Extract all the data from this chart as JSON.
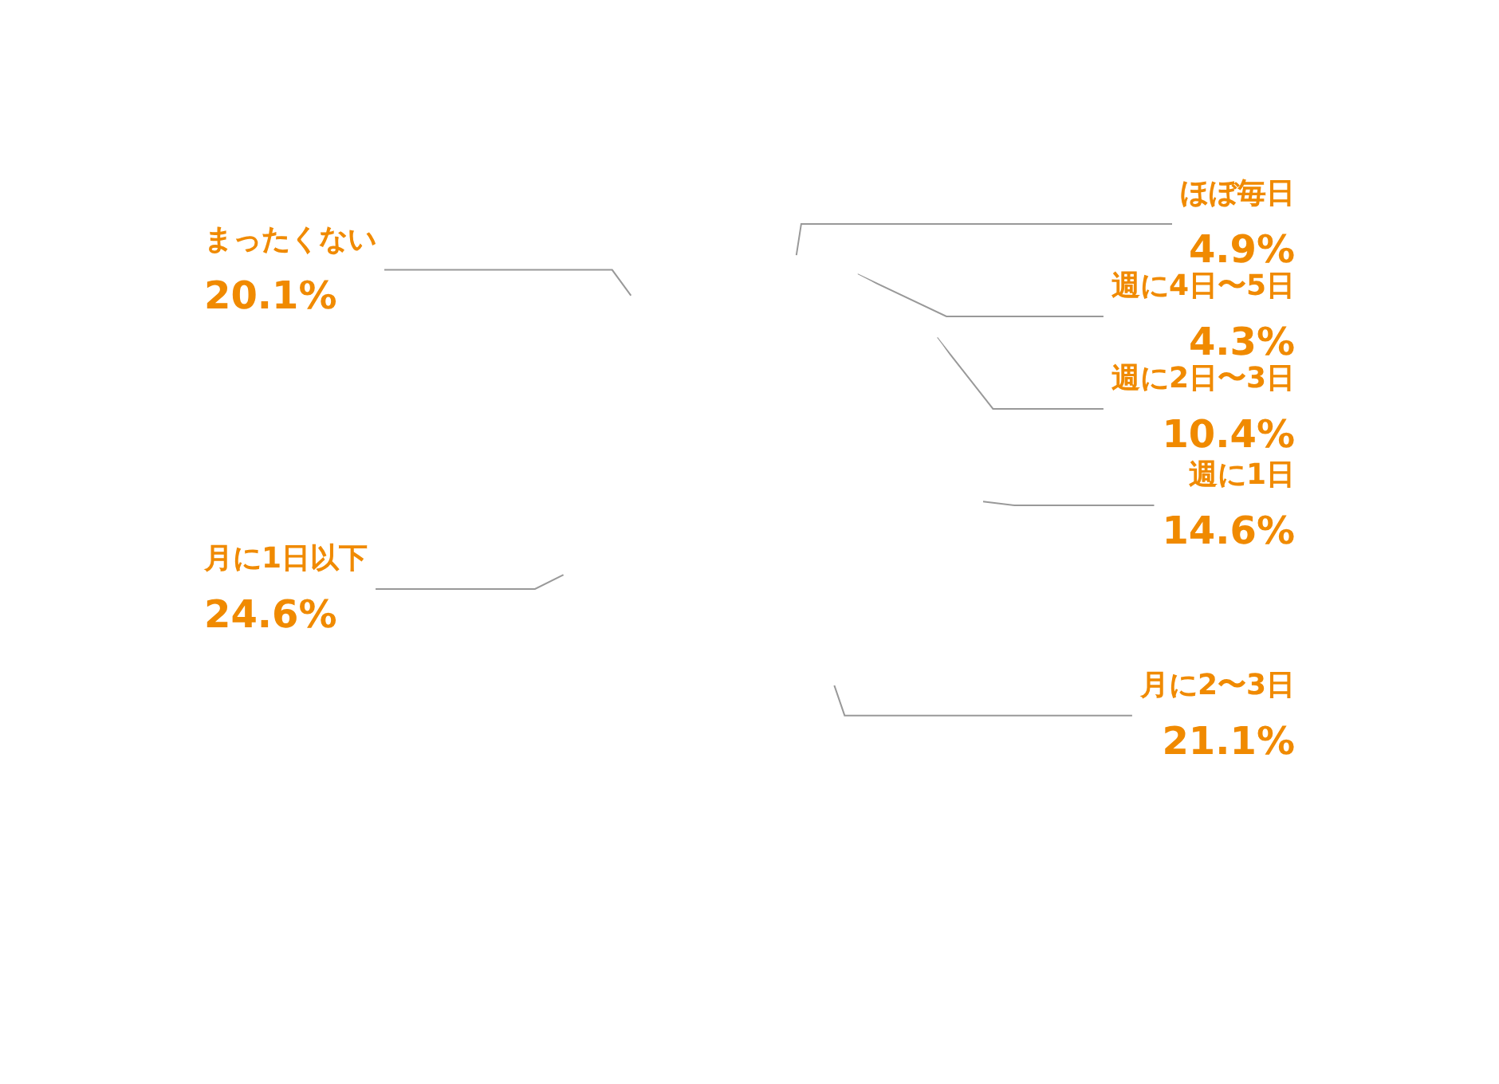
{
  "chart_data": {
    "type": "pie",
    "categories": [
      "ほぼ毎日",
      "週に4日〜5日",
      "週に2日〜3日",
      "週に1日",
      "月に2〜3日",
      "月に1日以下",
      "まったくない"
    ],
    "values": [
      4.9,
      4.3,
      10.4,
      14.6,
      21.1,
      24.6,
      20.1
    ],
    "value_labels": [
      "4.9%",
      "4.3%",
      "10.4%",
      "14.6%",
      "21.1%",
      "24.6%",
      "20.1%"
    ],
    "colors": [
      "#ffffff",
      "#ffffff",
      "#ffffff",
      "#ffffff",
      "#ffffff",
      "#ffffff",
      "#ffffff"
    ],
    "legend": false
  }
}
